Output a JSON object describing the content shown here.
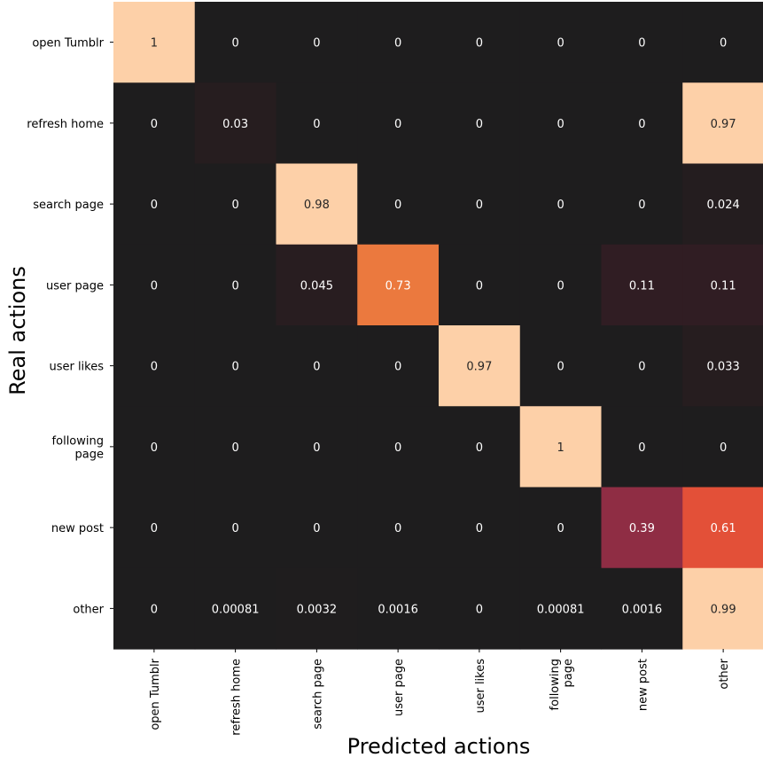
{
  "chart_data": {
    "type": "heatmap",
    "title": "",
    "xlabel": "Predicted actions",
    "ylabel": "Real actions",
    "x_categories": [
      "open Tumblr",
      "refresh home",
      "search page",
      "user page",
      "user likes",
      "following page",
      "new post",
      "other"
    ],
    "y_categories": [
      "open Tumblr",
      "refresh home",
      "search page",
      "user page",
      "user likes",
      "following page",
      "new post",
      "other"
    ],
    "values": [
      [
        1,
        0,
        0,
        0,
        0,
        0,
        0,
        0
      ],
      [
        0,
        0.03,
        0,
        0,
        0,
        0,
        0,
        0.97
      ],
      [
        0,
        0,
        0.98,
        0,
        0,
        0,
        0,
        0.024
      ],
      [
        0,
        0,
        0.045,
        0.73,
        0,
        0,
        0.11,
        0.11
      ],
      [
        0,
        0,
        0,
        0,
        0.97,
        0,
        0,
        0.033
      ],
      [
        0,
        0,
        0,
        0,
        0,
        1,
        0,
        0
      ],
      [
        0,
        0,
        0,
        0,
        0,
        0,
        0.39,
        0.61
      ],
      [
        0,
        0.00081,
        0.0032,
        0.0016,
        0,
        0.00081,
        0.0016,
        0.99
      ]
    ],
    "value_labels": [
      [
        "1",
        "0",
        "0",
        "0",
        "0",
        "0",
        "0",
        "0"
      ],
      [
        "0",
        "0.03",
        "0",
        "0",
        "0",
        "0",
        "0",
        "0.97"
      ],
      [
        "0",
        "0",
        "0.98",
        "0",
        "0",
        "0",
        "0",
        "0.024"
      ],
      [
        "0",
        "0",
        "0.045",
        "0.73",
        "0",
        "0",
        "0.11",
        "0.11"
      ],
      [
        "0",
        "0",
        "0",
        "0",
        "0.97",
        "0",
        "0",
        "0.033"
      ],
      [
        "0",
        "0",
        "0",
        "0",
        "0",
        "1",
        "0",
        "0"
      ],
      [
        "0",
        "0",
        "0",
        "0",
        "0",
        "0",
        "0.39",
        "0.61"
      ],
      [
        "0",
        "0.00081",
        "0.0032",
        "0.0016",
        "0",
        "0.00081",
        "0.0016",
        "0.99"
      ]
    ],
    "color_range": [
      0,
      1
    ],
    "colors": {
      "low": "#1e1d1e",
      "mid": "#8e2d44",
      "high": "#fdd0a8",
      "text": "#ffffff"
    }
  }
}
